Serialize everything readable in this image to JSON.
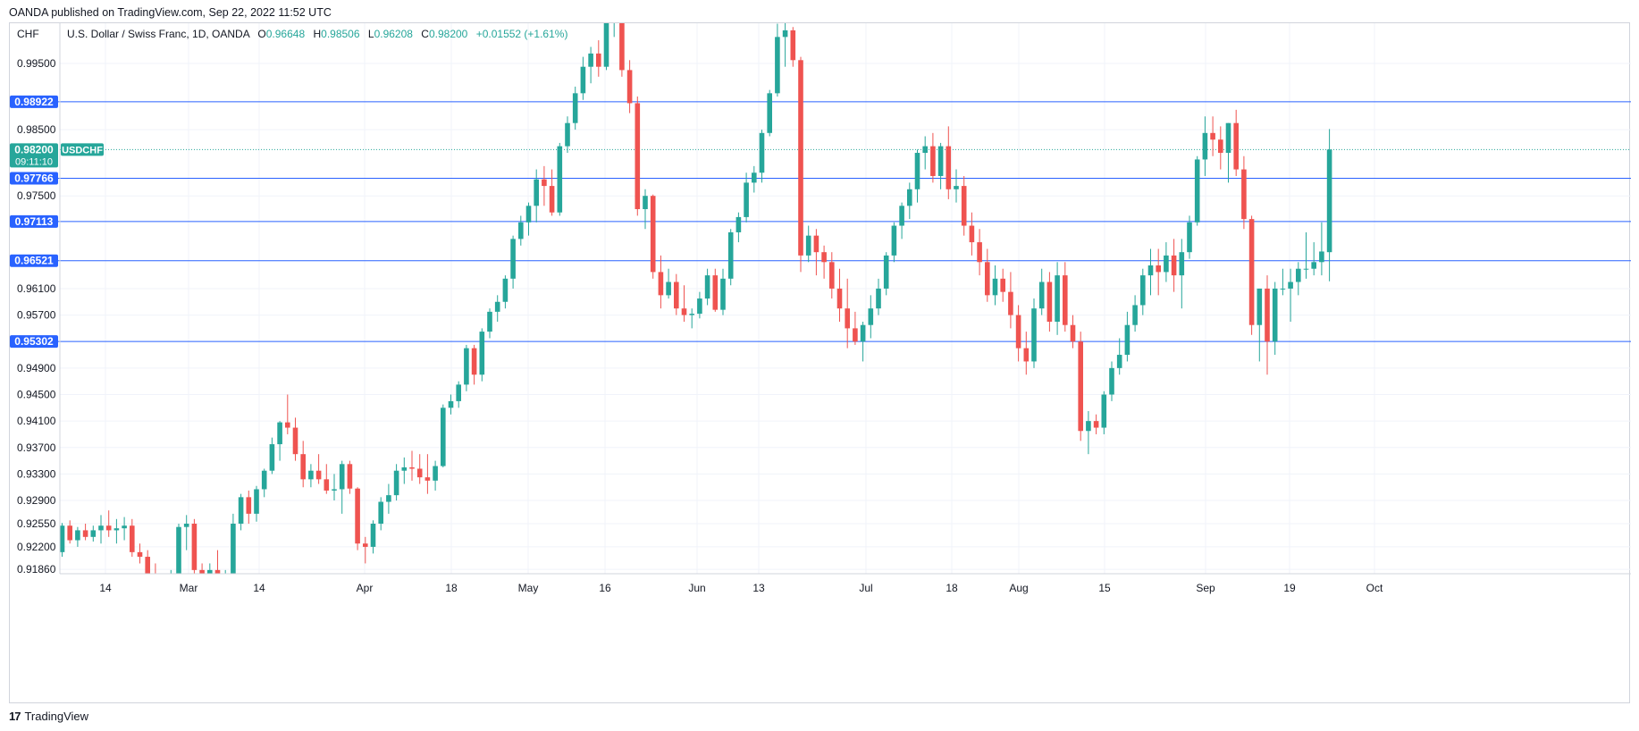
{
  "header": {
    "published": "OANDA published on TradingView.com, Sep 22, 2022 11:52 UTC"
  },
  "legend": {
    "currency": "CHF",
    "symbol": "U.S. Dollar / Swiss Franc, 1D, OANDA",
    "o_label": "O",
    "o_value": "0.96648",
    "h_label": "H",
    "h_value": "0.98506",
    "l_label": "L",
    "l_value": "0.96208",
    "c_label": "C",
    "c_value": "0.98200",
    "change": "+0.01552 (+1.61%)"
  },
  "price_tag": {
    "price": "0.98200",
    "countdown": "09:11:10",
    "symbol": "USDCHF"
  },
  "footer": {
    "brand": "TradingView"
  },
  "colors": {
    "up": "#26a69a",
    "down": "#ef5350",
    "hline": "#2962ff",
    "grid": "#f0f3fa"
  },
  "chart_data": {
    "type": "candlestick",
    "title": "U.S. Dollar / Swiss Franc, 1D, OANDA",
    "ylabel": "CHF",
    "ylim": [
      0.9165,
      1.0005
    ],
    "y_ticks": [
      "0.99500",
      "0.98500",
      "0.97500",
      "0.96100",
      "0.95700",
      "0.94900",
      "0.94500",
      "0.94100",
      "0.93700",
      "0.93300",
      "0.92900",
      "0.92550",
      "0.92200",
      "0.91860"
    ],
    "x_ticks": [
      "14",
      "Mar",
      "14",
      "Apr",
      "18",
      "May",
      "16",
      "Jun",
      "13",
      "Jul",
      "18",
      "Aug",
      "15",
      "Sep",
      "19",
      "Oct"
    ],
    "horizontal_levels": [
      "0.98922",
      "0.97766",
      "0.97113",
      "0.96521",
      "0.95302"
    ],
    "candles": [
      [
        0.9212,
        0.9256,
        0.9205,
        0.9252
      ],
      [
        0.9252,
        0.926,
        0.9225,
        0.923
      ],
      [
        0.923,
        0.925,
        0.922,
        0.9245
      ],
      [
        0.9245,
        0.9255,
        0.923,
        0.9235
      ],
      [
        0.9235,
        0.9252,
        0.9228,
        0.9245
      ],
      [
        0.9245,
        0.9268,
        0.9225,
        0.9252
      ],
      [
        0.9252,
        0.9275,
        0.9235,
        0.9245
      ],
      [
        0.9245,
        0.9262,
        0.9225,
        0.9248
      ],
      [
        0.9248,
        0.9265,
        0.923,
        0.9252
      ],
      [
        0.9252,
        0.9262,
        0.9205,
        0.9212
      ],
      [
        0.9212,
        0.9225,
        0.9195,
        0.9205
      ],
      [
        0.9205,
        0.9215,
        0.917,
        0.918
      ],
      [
        0.918,
        0.9195,
        0.915,
        0.9165
      ],
      [
        0.9165,
        0.918,
        0.9145,
        0.917
      ],
      [
        0.917,
        0.9185,
        0.915,
        0.918
      ],
      [
        0.918,
        0.9255,
        0.917,
        0.925
      ],
      [
        0.925,
        0.9268,
        0.9215,
        0.9255
      ],
      [
        0.9255,
        0.9262,
        0.918,
        0.9185
      ],
      [
        0.9185,
        0.9195,
        0.915,
        0.916
      ],
      [
        0.916,
        0.9195,
        0.915,
        0.9185
      ],
      [
        0.9185,
        0.9215,
        0.915,
        0.916
      ],
      [
        0.916,
        0.9185,
        0.915,
        0.918
      ],
      [
        0.918,
        0.927,
        0.9175,
        0.9255
      ],
      [
        0.9255,
        0.93,
        0.9245,
        0.9295
      ],
      [
        0.9295,
        0.9305,
        0.9255,
        0.927
      ],
      [
        0.927,
        0.9312,
        0.9258,
        0.9307
      ],
      [
        0.9307,
        0.9338,
        0.9295,
        0.9335
      ],
      [
        0.9335,
        0.9385,
        0.933,
        0.9375
      ],
      [
        0.9375,
        0.941,
        0.935,
        0.9408
      ],
      [
        0.9408,
        0.945,
        0.939,
        0.94
      ],
      [
        0.94,
        0.9415,
        0.935,
        0.936
      ],
      [
        0.936,
        0.938,
        0.931,
        0.9322
      ],
      [
        0.9322,
        0.9345,
        0.931,
        0.9335
      ],
      [
        0.9335,
        0.936,
        0.9315,
        0.9322
      ],
      [
        0.9322,
        0.9345,
        0.93,
        0.9305
      ],
      [
        0.9305,
        0.933,
        0.929,
        0.9307
      ],
      [
        0.9307,
        0.935,
        0.927,
        0.9345
      ],
      [
        0.9345,
        0.935,
        0.93,
        0.9308
      ],
      [
        0.9308,
        0.931,
        0.9215,
        0.9225
      ],
      [
        0.9225,
        0.9235,
        0.9195,
        0.922
      ],
      [
        0.922,
        0.926,
        0.921,
        0.9255
      ],
      [
        0.9255,
        0.9295,
        0.9245,
        0.9288
      ],
      [
        0.9288,
        0.9315,
        0.927,
        0.9298
      ],
      [
        0.9298,
        0.9345,
        0.929,
        0.9335
      ],
      [
        0.9335,
        0.9355,
        0.9315,
        0.934
      ],
      [
        0.934,
        0.9365,
        0.932,
        0.9338
      ],
      [
        0.9338,
        0.936,
        0.9315,
        0.9325
      ],
      [
        0.9325,
        0.936,
        0.93,
        0.932
      ],
      [
        0.932,
        0.935,
        0.9305,
        0.9342
      ],
      [
        0.9342,
        0.9435,
        0.934,
        0.943
      ],
      [
        0.943,
        0.945,
        0.942,
        0.944
      ],
      [
        0.944,
        0.947,
        0.943,
        0.9465
      ],
      [
        0.9465,
        0.9525,
        0.9455,
        0.952
      ],
      [
        0.952,
        0.9525,
        0.9465,
        0.948
      ],
      [
        0.948,
        0.955,
        0.947,
        0.9545
      ],
      [
        0.9545,
        0.958,
        0.9535,
        0.9575
      ],
      [
        0.9575,
        0.96,
        0.956,
        0.959
      ],
      [
        0.959,
        0.963,
        0.958,
        0.9625
      ],
      [
        0.9625,
        0.969,
        0.961,
        0.9685
      ],
      [
        0.9685,
        0.972,
        0.9675,
        0.971
      ],
      [
        0.971,
        0.974,
        0.969,
        0.9735
      ],
      [
        0.9735,
        0.979,
        0.971,
        0.9775
      ],
      [
        0.9775,
        0.9795,
        0.9735,
        0.9765
      ],
      [
        0.9765,
        0.979,
        0.972,
        0.9725
      ],
      [
        0.9725,
        0.983,
        0.972,
        0.9825
      ],
      [
        0.9825,
        0.987,
        0.9815,
        0.986
      ],
      [
        0.986,
        0.9915,
        0.985,
        0.9905
      ],
      [
        0.9905,
        0.996,
        0.9895,
        0.9945
      ],
      [
        0.9945,
        0.9975,
        0.992,
        0.9965
      ],
      [
        0.9965,
        0.9985,
        0.993,
        0.9945
      ],
      [
        0.9945,
        1.005,
        0.994,
        1.003
      ],
      [
        1.003,
        1.006,
        0.999,
        1.005
      ],
      [
        1.005,
        1.0055,
        0.993,
        0.994
      ],
      [
        0.994,
        0.9955,
        0.9875,
        0.989
      ],
      [
        0.989,
        0.99,
        0.972,
        0.973
      ],
      [
        0.973,
        0.976,
        0.97,
        0.975
      ],
      [
        0.975,
        0.9752,
        0.9625,
        0.9635
      ],
      [
        0.9635,
        0.966,
        0.958,
        0.96
      ],
      [
        0.96,
        0.964,
        0.9595,
        0.962
      ],
      [
        0.962,
        0.9632,
        0.957,
        0.958
      ],
      [
        0.958,
        0.9615,
        0.956,
        0.957
      ],
      [
        0.957,
        0.958,
        0.955,
        0.9572
      ],
      [
        0.9572,
        0.9605,
        0.9565,
        0.9595
      ],
      [
        0.9595,
        0.964,
        0.9585,
        0.963
      ],
      [
        0.963,
        0.964,
        0.9575,
        0.9578
      ],
      [
        0.9578,
        0.964,
        0.957,
        0.9625
      ],
      [
        0.9625,
        0.97,
        0.9615,
        0.9695
      ],
      [
        0.9695,
        0.9725,
        0.968,
        0.9718
      ],
      [
        0.9718,
        0.9785,
        0.971,
        0.977
      ],
      [
        0.977,
        0.9795,
        0.9755,
        0.9785
      ],
      [
        0.9785,
        0.985,
        0.977,
        0.9845
      ],
      [
        0.9845,
        0.991,
        0.984,
        0.9905
      ],
      [
        0.9905,
        1.001,
        0.99,
        0.999
      ],
      [
        0.999,
        1.002,
        0.9945,
        1.0
      ],
      [
        1.0,
        1.0005,
        0.9945,
        0.9955
      ],
      [
        0.9955,
        0.996,
        0.9635,
        0.966
      ],
      [
        0.966,
        0.9705,
        0.965,
        0.969
      ],
      [
        0.969,
        0.97,
        0.963,
        0.9665
      ],
      [
        0.9665,
        0.9675,
        0.9625,
        0.965
      ],
      [
        0.965,
        0.9665,
        0.9595,
        0.961
      ],
      [
        0.961,
        0.964,
        0.956,
        0.958
      ],
      [
        0.958,
        0.9625,
        0.952,
        0.955
      ],
      [
        0.955,
        0.9575,
        0.9525,
        0.953
      ],
      [
        0.953,
        0.956,
        0.95,
        0.9555
      ],
      [
        0.9555,
        0.96,
        0.9535,
        0.958
      ],
      [
        0.958,
        0.9625,
        0.957,
        0.961
      ],
      [
        0.961,
        0.9665,
        0.96,
        0.966
      ],
      [
        0.966,
        0.971,
        0.965,
        0.9705
      ],
      [
        0.9705,
        0.974,
        0.9685,
        0.9735
      ],
      [
        0.9735,
        0.977,
        0.9715,
        0.976
      ],
      [
        0.976,
        0.982,
        0.974,
        0.9815
      ],
      [
        0.9815,
        0.984,
        0.979,
        0.9825
      ],
      [
        0.9825,
        0.9845,
        0.977,
        0.978
      ],
      [
        0.978,
        0.983,
        0.976,
        0.9825
      ],
      [
        0.9825,
        0.9855,
        0.9745,
        0.976
      ],
      [
        0.976,
        0.979,
        0.974,
        0.9765
      ],
      [
        0.9765,
        0.978,
        0.969,
        0.9705
      ],
      [
        0.9705,
        0.9725,
        0.966,
        0.968
      ],
      [
        0.968,
        0.97,
        0.963,
        0.965
      ],
      [
        0.965,
        0.967,
        0.959,
        0.96
      ],
      [
        0.96,
        0.9645,
        0.9585,
        0.9625
      ],
      [
        0.9625,
        0.964,
        0.959,
        0.9605
      ],
      [
        0.9605,
        0.9635,
        0.955,
        0.957
      ],
      [
        0.957,
        0.9585,
        0.95,
        0.952
      ],
      [
        0.952,
        0.9545,
        0.948,
        0.95
      ],
      [
        0.95,
        0.9595,
        0.949,
        0.958
      ],
      [
        0.958,
        0.964,
        0.957,
        0.962
      ],
      [
        0.962,
        0.9635,
        0.9545,
        0.956
      ],
      [
        0.956,
        0.965,
        0.954,
        0.963
      ],
      [
        0.963,
        0.965,
        0.9545,
        0.9555
      ],
      [
        0.9555,
        0.957,
        0.952,
        0.953
      ],
      [
        0.953,
        0.9545,
        0.938,
        0.9395
      ],
      [
        0.9395,
        0.9425,
        0.936,
        0.941
      ],
      [
        0.941,
        0.942,
        0.939,
        0.94
      ],
      [
        0.94,
        0.9455,
        0.939,
        0.945
      ],
      [
        0.945,
        0.95,
        0.944,
        0.949
      ],
      [
        0.949,
        0.9535,
        0.948,
        0.951
      ],
      [
        0.951,
        0.9575,
        0.95,
        0.9555
      ],
      [
        0.9555,
        0.96,
        0.9545,
        0.9585
      ],
      [
        0.9585,
        0.964,
        0.957,
        0.963
      ],
      [
        0.963,
        0.967,
        0.96,
        0.9645
      ],
      [
        0.9645,
        0.967,
        0.96,
        0.9635
      ],
      [
        0.9635,
        0.968,
        0.962,
        0.966
      ],
      [
        0.966,
        0.9685,
        0.9605,
        0.963
      ],
      [
        0.963,
        0.9685,
        0.958,
        0.9665
      ],
      [
        0.9665,
        0.972,
        0.9655,
        0.971
      ],
      [
        0.971,
        0.981,
        0.9705,
        0.9805
      ],
      [
        0.9805,
        0.987,
        0.978,
        0.9845
      ],
      [
        0.9845,
        0.987,
        0.981,
        0.9835
      ],
      [
        0.9835,
        0.9855,
        0.979,
        0.9815
      ],
      [
        0.9815,
        0.986,
        0.977,
        0.986
      ],
      [
        0.986,
        0.988,
        0.978,
        0.979
      ],
      [
        0.979,
        0.981,
        0.97,
        0.9715
      ],
      [
        0.9715,
        0.972,
        0.954,
        0.9555
      ],
      [
        0.9555,
        0.961,
        0.95,
        0.961
      ],
      [
        0.961,
        0.963,
        0.948,
        0.953
      ],
      [
        0.953,
        0.962,
        0.951,
        0.961
      ],
      [
        0.961,
        0.964,
        0.96,
        0.961
      ],
      [
        0.961,
        0.964,
        0.956,
        0.962
      ],
      [
        0.962,
        0.965,
        0.96,
        0.964
      ],
      [
        0.964,
        0.9695,
        0.9625,
        0.964
      ],
      [
        0.964,
        0.968,
        0.963,
        0.965
      ],
      [
        0.965,
        0.971,
        0.963,
        0.9666
      ],
      [
        0.9665,
        0.9851,
        0.9621,
        0.982
      ]
    ]
  }
}
